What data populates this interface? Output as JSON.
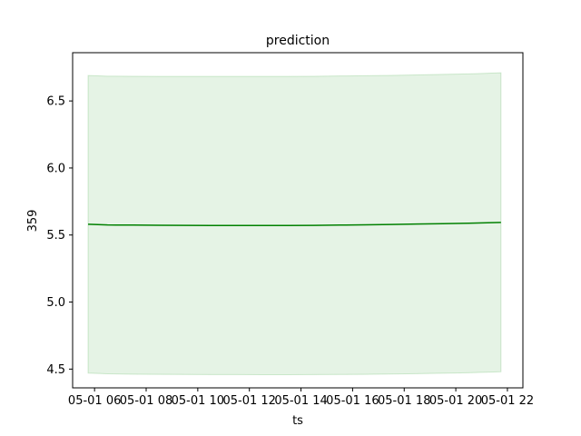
{
  "chart_data": {
    "type": "line",
    "title": "prediction",
    "xlabel": "ts",
    "ylabel": "359",
    "xlim": [
      5.15,
      22.6
    ],
    "ylim": [
      4.36,
      6.86
    ],
    "x_ticks": [
      6,
      8,
      10,
      12,
      14,
      16,
      18,
      20,
      22
    ],
    "x_tick_labels": [
      "05-01 06",
      "05-01 08",
      "05-01 10",
      "05-01 12",
      "05-01 14",
      "05-01 16",
      "05-01 18",
      "05-01 20",
      "05-01 22"
    ],
    "y_ticks": [
      4.5,
      5.0,
      5.5,
      6.0,
      6.5
    ],
    "y_tick_labels": [
      "4.5",
      "5.0",
      "5.5",
      "6.0",
      "6.5"
    ],
    "grid": false,
    "legend": "none",
    "series": [
      {
        "kind": "line",
        "color": "#008000",
        "x": [
          5.75,
          6.5,
          7.5,
          8.5,
          9.5,
          10.5,
          11.5,
          12.5,
          13.5,
          14.5,
          15.5,
          16.5,
          17.5,
          18.5,
          19.5,
          20.5,
          21.75
        ],
        "y": [
          5.58,
          5.575,
          5.574,
          5.573,
          5.572,
          5.571,
          5.571,
          5.571,
          5.571,
          5.572,
          5.574,
          5.576,
          5.579,
          5.582,
          5.585,
          5.588,
          5.594
        ]
      },
      {
        "kind": "band",
        "color": "#2ca02c",
        "x": [
          5.75,
          6.5,
          7.5,
          8.5,
          9.5,
          10.5,
          11.5,
          12.5,
          13.5,
          14.5,
          15.5,
          16.5,
          17.5,
          18.5,
          19.5,
          20.5,
          21.75
        ],
        "lower": [
          4.47,
          4.465,
          4.462,
          4.461,
          4.46,
          4.459,
          4.459,
          4.458,
          4.458,
          4.459,
          4.46,
          4.461,
          4.463,
          4.466,
          4.469,
          4.473,
          4.48
        ],
        "upper": [
          6.69,
          6.685,
          6.684,
          6.683,
          6.683,
          6.683,
          6.683,
          6.683,
          6.683,
          6.684,
          6.686,
          6.688,
          6.691,
          6.694,
          6.698,
          6.702,
          6.71
        ]
      }
    ]
  }
}
